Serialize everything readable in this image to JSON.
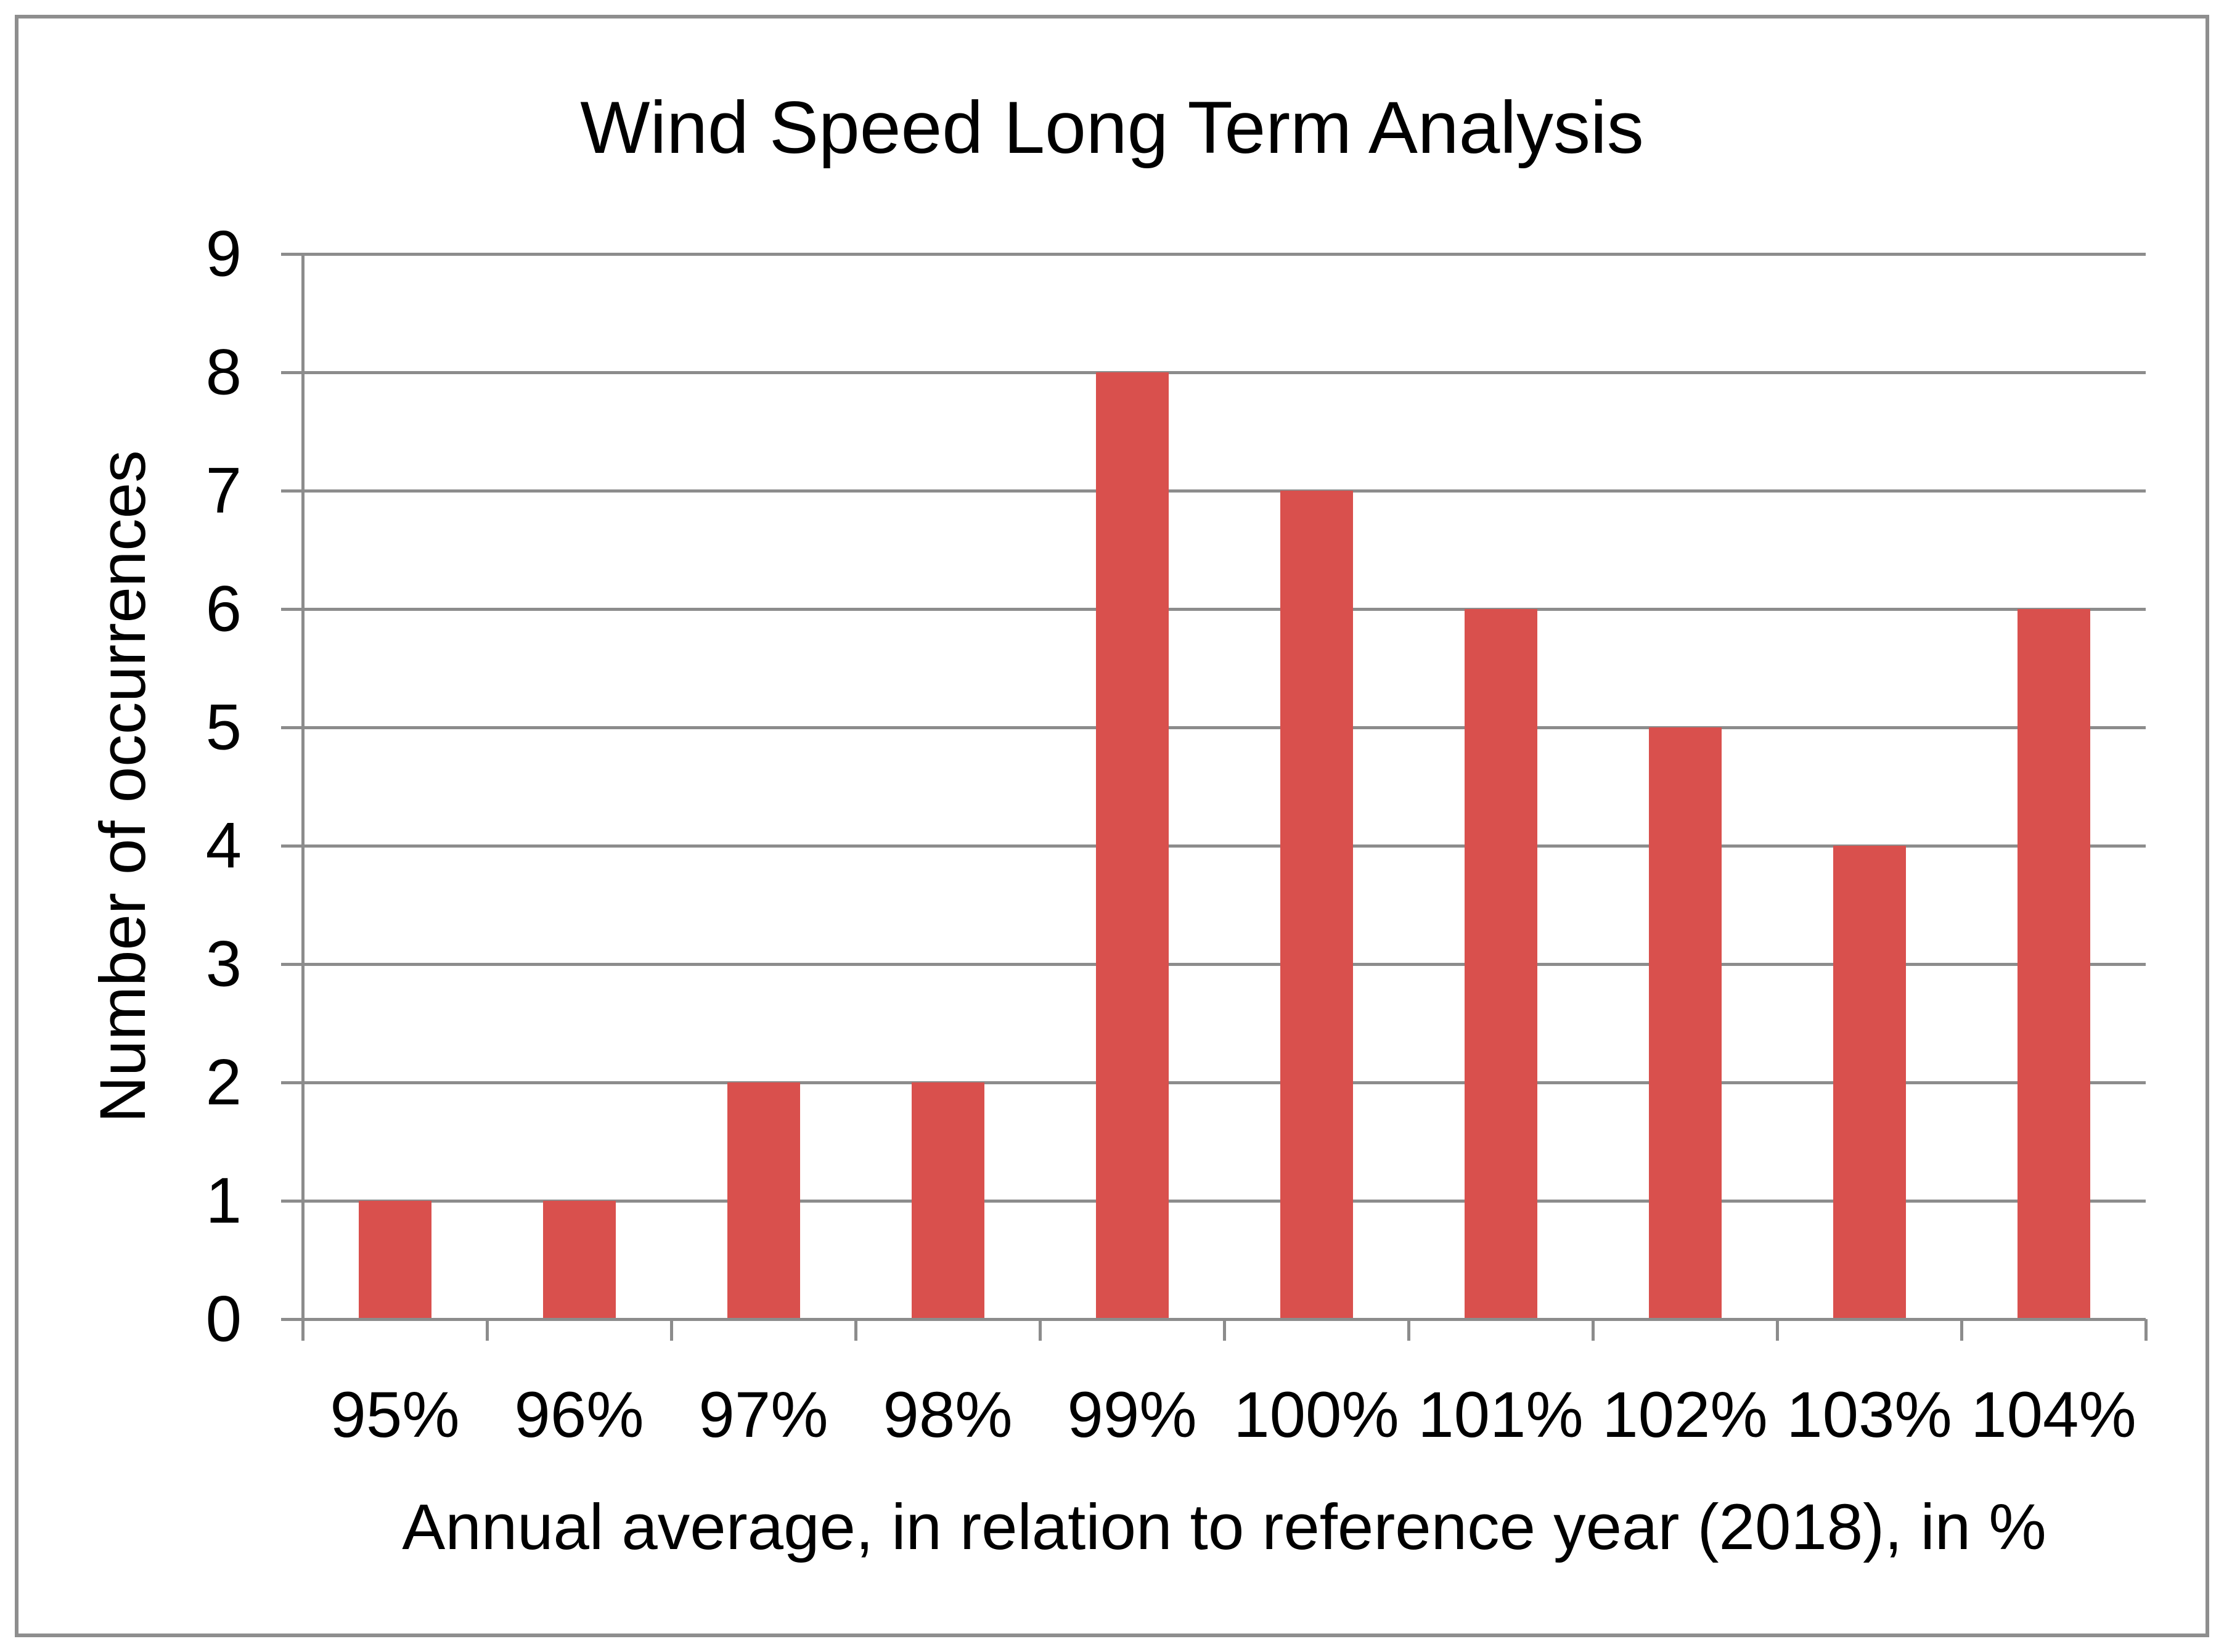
{
  "chart_data": {
    "type": "bar",
    "title": "Wind Speed Long Term Analysis",
    "categories": [
      "95%",
      "96%",
      "97%",
      "98%",
      "99%",
      "100%",
      "101%",
      "102%",
      "103%",
      "104%"
    ],
    "values": [
      1,
      1,
      2,
      2,
      8,
      7,
      6,
      5,
      4,
      6
    ],
    "xlabel": "Annual average, in relation to reference year (2018), in %",
    "ylabel": "Number of occurrences",
    "ylim": [
      0,
      9
    ],
    "ytick_step": 1,
    "yticks": [
      "0",
      "1",
      "2",
      "3",
      "4",
      "5",
      "6",
      "7",
      "8",
      "9"
    ],
    "grid": "horizontal",
    "legend_position": "none",
    "bar_color": "#D9504D",
    "grid_color": "#8C8C8C",
    "frame_color": "#8E8E8E",
    "text_color": "#000000"
  }
}
